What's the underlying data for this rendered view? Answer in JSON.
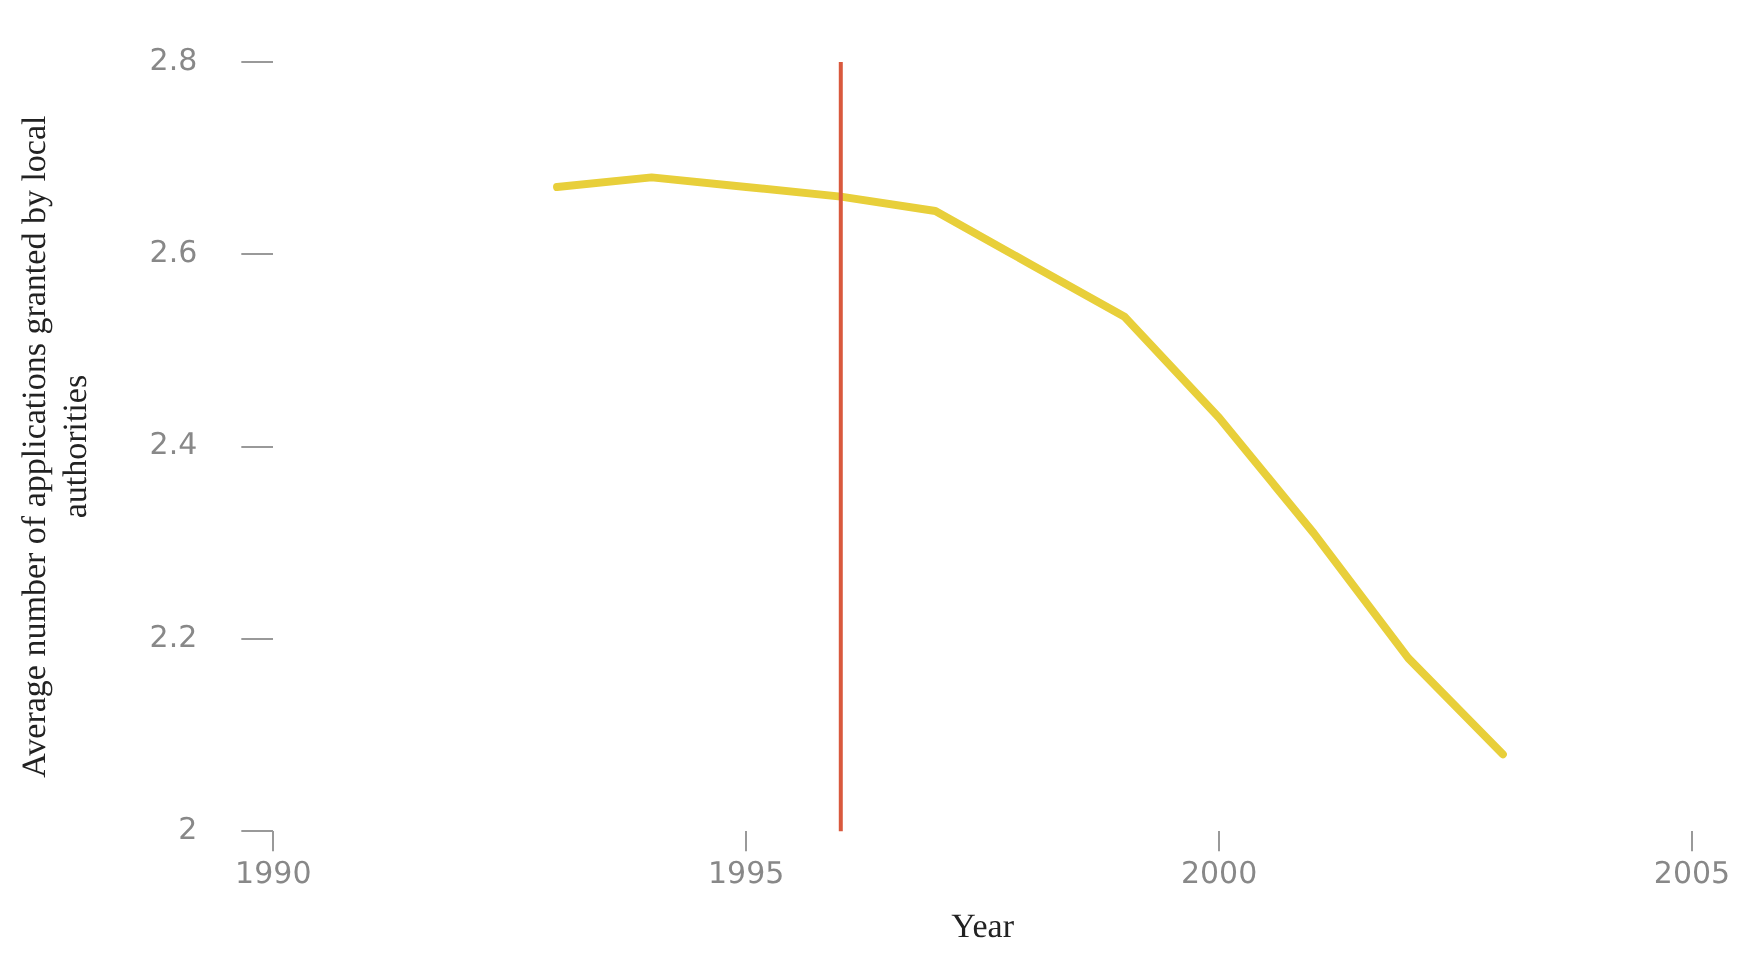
{
  "chart_data": {
    "type": "line",
    "xlabel": "Year",
    "ylabel": "Average number of applications granted by local authorities",
    "x": [
      1993,
      1994,
      1995,
      1996,
      1997,
      1998,
      1999,
      2000,
      2001,
      2002,
      2003
    ],
    "series": [
      {
        "color": "#e8cf3a",
        "values": [
          2.67,
          2.68,
          2.67,
          2.66,
          2.645,
          2.59,
          2.535,
          2.43,
          2.31,
          2.18,
          2.08
        ]
      }
    ],
    "xlim": [
      1990,
      2005
    ],
    "xticks": [
      1990,
      1995,
      2000,
      2005
    ],
    "ylim": [
      2,
      2.8
    ],
    "yticks": [
      2,
      2.2,
      2.4,
      2.6,
      2.8
    ],
    "ref_lines": [
      {
        "axis": "x",
        "value": 1996,
        "color": "#d9593d"
      }
    ],
    "grid": false,
    "legend": false,
    "marker": "none",
    "line_style": "solid"
  }
}
